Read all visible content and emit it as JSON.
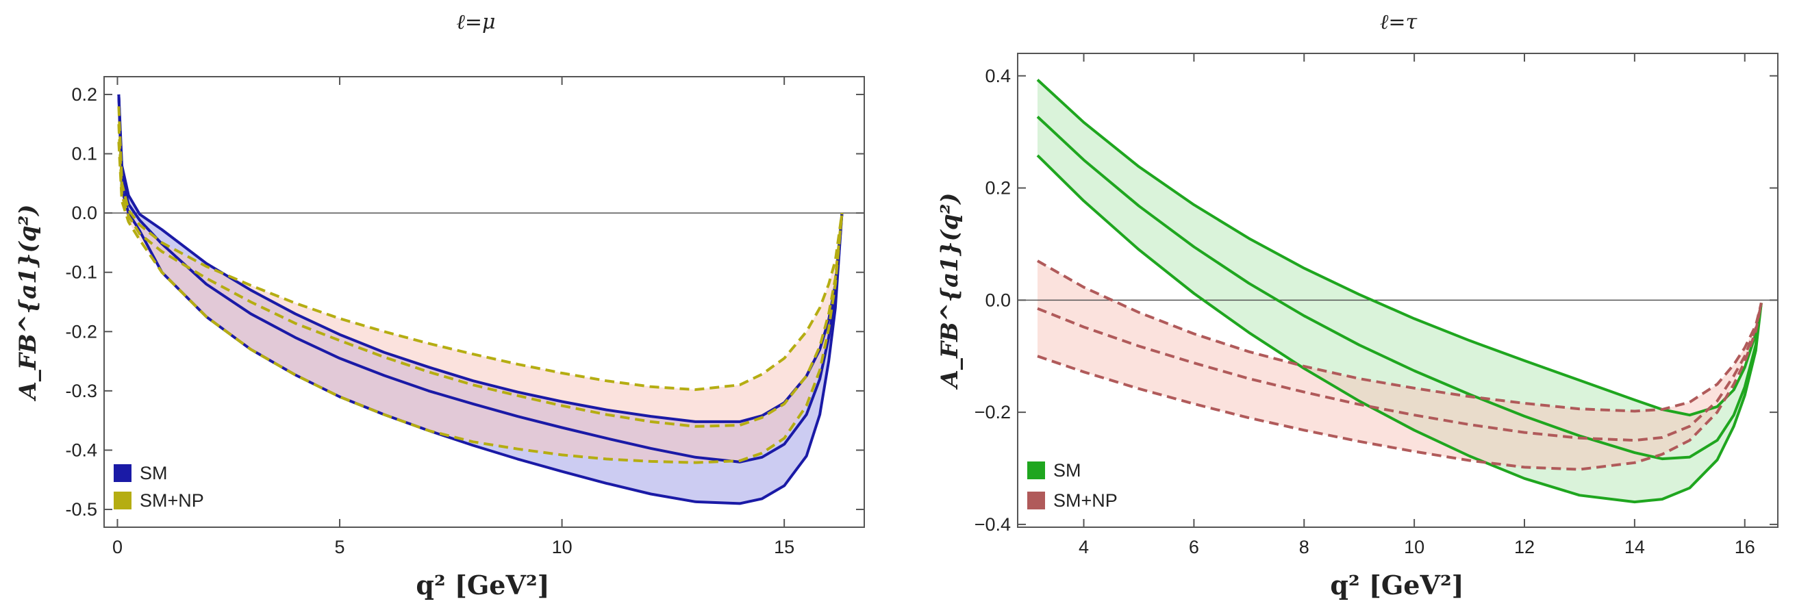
{
  "chart_data": [
    {
      "type": "line",
      "title": "ℓ=μ",
      "xlabel": "q² [GeV²]",
      "ylabel": "A_FB^{a1}(q²)",
      "xlim": [
        -0.3,
        16.8
      ],
      "ylim": [
        -0.53,
        0.23
      ],
      "xticks": [
        0,
        5,
        10,
        15
      ],
      "xtick_labels": [
        "0",
        "5",
        "10",
        "15"
      ],
      "yticks": [
        0.2,
        0.1,
        0.0,
        -0.1,
        -0.2,
        -0.3,
        -0.4,
        -0.5
      ],
      "ytick_labels": [
        "0.2",
        "0.1",
        "0.0",
        "-0.1",
        "-0.2",
        "-0.3",
        "-0.4",
        "-0.5"
      ],
      "legend": [
        {
          "label": "SM",
          "color": "#1a1aa6"
        },
        {
          "label": "SM+NP",
          "color": "#b5ad12"
        }
      ],
      "legend_position": "bottom-left",
      "x": [
        0.03,
        0.1,
        0.25,
        0.5,
        1,
        2,
        3,
        4,
        5,
        6,
        7,
        8,
        9,
        10,
        11,
        12,
        13,
        14,
        14.5,
        15,
        15.5,
        15.8,
        16.0,
        16.15,
        16.3
      ],
      "series": [
        {
          "name": "SM upper",
          "style": "solid",
          "color": "#1a1aa6",
          "values": [
            0.2,
            0.08,
            0.03,
            -0.002,
            -0.028,
            -0.085,
            -0.13,
            -0.17,
            -0.205,
            -0.235,
            -0.26,
            -0.283,
            -0.302,
            -0.318,
            -0.332,
            -0.343,
            -0.352,
            -0.352,
            -0.342,
            -0.32,
            -0.275,
            -0.23,
            -0.18,
            -0.12,
            0.0
          ]
        },
        {
          "name": "SM central",
          "style": "solid",
          "color": "#1a1aa6",
          "values": [
            0.2,
            0.06,
            0.015,
            -0.012,
            -0.052,
            -0.12,
            -0.17,
            -0.21,
            -0.245,
            -0.274,
            -0.3,
            -0.322,
            -0.343,
            -0.362,
            -0.38,
            -0.397,
            -0.412,
            -0.42,
            -0.412,
            -0.39,
            -0.34,
            -0.28,
            -0.21,
            -0.14,
            0.0
          ]
        },
        {
          "name": "SM lower",
          "style": "solid",
          "color": "#1a1aa6",
          "values": [
            0.2,
            0.04,
            0.0,
            -0.03,
            -0.1,
            -0.175,
            -0.23,
            -0.273,
            -0.31,
            -0.34,
            -0.367,
            -0.392,
            -0.415,
            -0.436,
            -0.456,
            -0.474,
            -0.487,
            -0.49,
            -0.482,
            -0.46,
            -0.41,
            -0.34,
            -0.25,
            -0.16,
            0.0
          ]
        },
        {
          "name": "SM+NP upper",
          "style": "dashed",
          "color": "#b5ad12",
          "values": [
            0.18,
            0.05,
            0.005,
            -0.02,
            -0.05,
            -0.09,
            -0.122,
            -0.152,
            -0.178,
            -0.2,
            -0.22,
            -0.238,
            -0.255,
            -0.27,
            -0.283,
            -0.293,
            -0.298,
            -0.29,
            -0.272,
            -0.245,
            -0.2,
            -0.16,
            -0.12,
            -0.08,
            0.0
          ]
        },
        {
          "name": "SM+NP central",
          "style": "dashed",
          "color": "#b5ad12",
          "values": [
            0.15,
            0.03,
            -0.005,
            -0.035,
            -0.065,
            -0.11,
            -0.15,
            -0.186,
            -0.215,
            -0.243,
            -0.268,
            -0.29,
            -0.308,
            -0.325,
            -0.34,
            -0.352,
            -0.36,
            -0.358,
            -0.345,
            -0.322,
            -0.275,
            -0.225,
            -0.17,
            -0.11,
            0.0
          ]
        },
        {
          "name": "SM+NP lower",
          "style": "dashed",
          "color": "#b5ad12",
          "values": [
            0.12,
            0.02,
            -0.015,
            -0.045,
            -0.1,
            -0.175,
            -0.23,
            -0.273,
            -0.31,
            -0.34,
            -0.367,
            -0.386,
            -0.398,
            -0.408,
            -0.415,
            -0.419,
            -0.421,
            -0.418,
            -0.405,
            -0.38,
            -0.325,
            -0.265,
            -0.195,
            -0.12,
            0.0
          ]
        }
      ],
      "bands": [
        {
          "name": "SM",
          "upper": "SM upper",
          "lower": "SM lower",
          "color": "#9a9ae6"
        },
        {
          "name": "SM+NP",
          "upper": "SM+NP upper",
          "lower": "SM+NP lower",
          "color": "#f7c6bc"
        }
      ]
    },
    {
      "type": "line",
      "title": "ℓ=τ",
      "xlabel": "q² [GeV²]",
      "ylabel": "A_FB^{a1}(q²)",
      "xlim": [
        2.8,
        16.6
      ],
      "ylim": [
        -0.405,
        0.44
      ],
      "xticks": [
        4,
        6,
        8,
        10,
        12,
        14,
        16
      ],
      "xtick_labels": [
        "4",
        "6",
        "8",
        "10",
        "12",
        "14",
        "16"
      ],
      "yticks": [
        0.4,
        0.2,
        0.0,
        -0.2,
        -0.4
      ],
      "ytick_labels": [
        "0.4",
        "0.2",
        "0.0",
        "−0.2",
        "−0.4"
      ],
      "legend": [
        {
          "label": "SM",
          "color": "#1fa61f"
        },
        {
          "label": "SM+NP",
          "color": "#b05a5a"
        }
      ],
      "legend_position": "bottom-left",
      "x": [
        3.16,
        4,
        5,
        6,
        7,
        8,
        9,
        10,
        11,
        12,
        13,
        14,
        14.5,
        15,
        15.5,
        15.8,
        16.0,
        16.2,
        16.3
      ],
      "series": [
        {
          "name": "SM upper",
          "style": "solid",
          "color": "#1fa61f",
          "values": [
            0.393,
            0.317,
            0.238,
            0.17,
            0.11,
            0.057,
            0.01,
            -0.033,
            -0.072,
            -0.108,
            -0.143,
            -0.178,
            -0.195,
            -0.205,
            -0.19,
            -0.16,
            -0.12,
            -0.06,
            -0.005
          ]
        },
        {
          "name": "SM central",
          "style": "solid",
          "color": "#1fa61f",
          "values": [
            0.327,
            0.25,
            0.168,
            0.095,
            0.03,
            -0.028,
            -0.08,
            -0.126,
            -0.168,
            -0.207,
            -0.242,
            -0.272,
            -0.283,
            -0.28,
            -0.25,
            -0.205,
            -0.155,
            -0.08,
            -0.005
          ]
        },
        {
          "name": "SM lower",
          "style": "solid",
          "color": "#1fa61f",
          "values": [
            0.258,
            0.177,
            0.09,
            0.012,
            -0.058,
            -0.122,
            -0.18,
            -0.232,
            -0.278,
            -0.318,
            -0.348,
            -0.36,
            -0.355,
            -0.335,
            -0.285,
            -0.225,
            -0.17,
            -0.09,
            -0.005
          ]
        },
        {
          "name": "SM+NP upper",
          "style": "dashed",
          "color": "#b05a5a",
          "values": [
            0.07,
            0.023,
            -0.022,
            -0.06,
            -0.092,
            -0.118,
            -0.14,
            -0.157,
            -0.172,
            -0.184,
            -0.194,
            -0.198,
            -0.195,
            -0.182,
            -0.15,
            -0.115,
            -0.085,
            -0.045,
            -0.005
          ]
        },
        {
          "name": "SM+NP central",
          "style": "dashed",
          "color": "#b05a5a",
          "values": [
            -0.015,
            -0.048,
            -0.082,
            -0.112,
            -0.14,
            -0.164,
            -0.186,
            -0.205,
            -0.222,
            -0.236,
            -0.246,
            -0.25,
            -0.245,
            -0.225,
            -0.18,
            -0.135,
            -0.1,
            -0.05,
            -0.005
          ]
        },
        {
          "name": "SM+NP lower",
          "style": "dashed",
          "color": "#b05a5a",
          "values": [
            -0.1,
            -0.128,
            -0.158,
            -0.185,
            -0.21,
            -0.232,
            -0.252,
            -0.27,
            -0.286,
            -0.298,
            -0.302,
            -0.29,
            -0.275,
            -0.25,
            -0.2,
            -0.15,
            -0.11,
            -0.055,
            -0.005
          ]
        }
      ],
      "bands": [
        {
          "name": "SM",
          "upper": "SM upper",
          "lower": "SM lower",
          "color": "#b6e8b6"
        },
        {
          "name": "SM+NP",
          "upper": "SM+NP upper",
          "lower": "SM+NP lower",
          "color": "#f7c6bc"
        }
      ]
    }
  ]
}
